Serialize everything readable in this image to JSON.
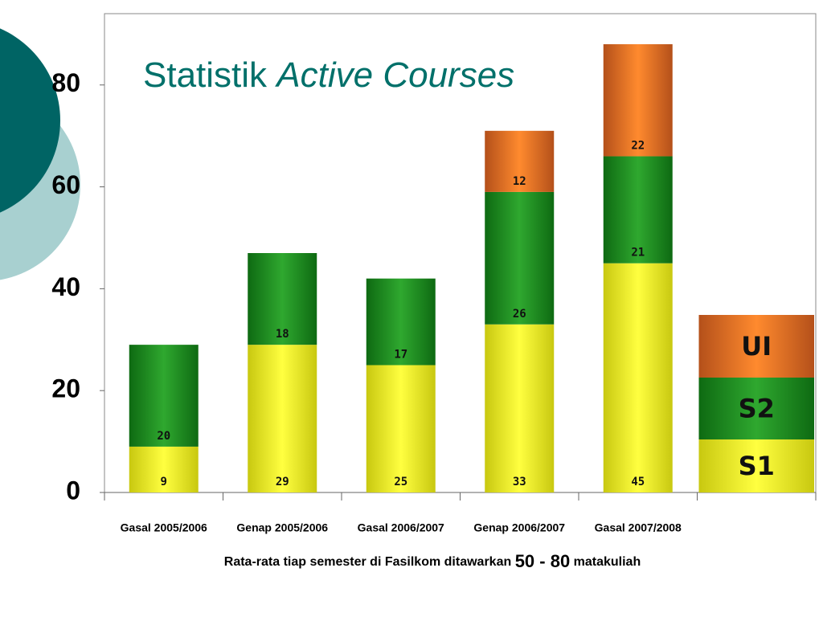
{
  "chart_data": {
    "type": "stacked_bar",
    "title": [
      "Statistik ",
      "Active Courses"
    ],
    "footer": [
      "Rata-rata tiap semester di Fasilkom ditawarkan ",
      "50 - 80",
      " matakuliah"
    ],
    "categories": [
      "Gasal 2005/2006",
      "Genap 2005/2006",
      "Gasal 2006/2007",
      "Genap 2006/2007",
      "Gasal 2007/2008"
    ],
    "series": [
      {
        "name": "S1",
        "color": "#f2f222",
        "values": [
          9,
          29,
          25,
          33,
          45
        ]
      },
      {
        "name": "S2",
        "color": "#229922",
        "values": [
          20,
          18,
          17,
          26,
          21
        ]
      },
      {
        "name": "UI",
        "color": "#f47a22",
        "values": [
          null,
          null,
          null,
          12,
          22
        ]
      }
    ],
    "ylim": [
      0,
      94
    ],
    "yticks": [
      0,
      20,
      40,
      60,
      80
    ],
    "grid": false
  }
}
